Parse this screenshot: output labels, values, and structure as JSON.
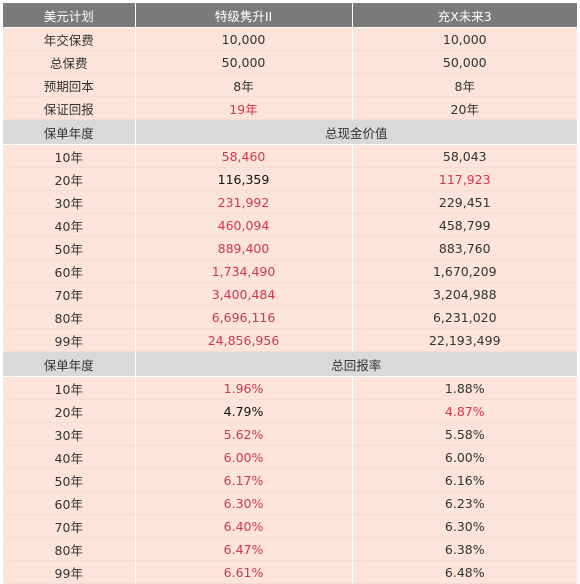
{
  "header": {
    "col1": "美元计划",
    "col2": "特级隽升II",
    "col3": "充X未来3"
  },
  "basic_rows": [
    {
      "label": "年交保费",
      "a": "10,000",
      "b": "10,000",
      "a_color": "normal",
      "b_color": "normal"
    },
    {
      "label": "总保费",
      "a": "50,000",
      "b": "50,000",
      "a_color": "normal",
      "b_color": "normal"
    },
    {
      "label": "预期回本",
      "a": "8年",
      "b": "8年",
      "a_color": "normal",
      "b_color": "normal"
    },
    {
      "label": "保证回报",
      "a": "19年",
      "b": "20年",
      "a_color": "red",
      "b_color": "normal"
    }
  ],
  "cash_section": {
    "col1": "保单年度",
    "title": "总现金价值",
    "rows": [
      {
        "label": "10年",
        "a": "58,460",
        "b": "58,043",
        "a_color": "red",
        "b_color": "normal"
      },
      {
        "label": "20年",
        "a": "116,359",
        "b": "117,923",
        "a_color": "black",
        "b_color": "red"
      },
      {
        "label": "30年",
        "a": "231,992",
        "b": "229,451",
        "a_color": "red",
        "b_color": "normal"
      },
      {
        "label": "40年",
        "a": "460,094",
        "b": "458,799",
        "a_color": "red",
        "b_color": "normal"
      },
      {
        "label": "50年",
        "a": "889,400",
        "b": "883,760",
        "a_color": "red",
        "b_color": "normal"
      },
      {
        "label": "60年",
        "a": "1,734,490",
        "b": "1,670,209",
        "a_color": "red",
        "b_color": "normal"
      },
      {
        "label": "70年",
        "a": "3,400,484",
        "b": "3,204,988",
        "a_color": "red",
        "b_color": "normal"
      },
      {
        "label": "80年",
        "a": "6,696,116",
        "b": "6,231,020",
        "a_color": "red",
        "b_color": "normal"
      },
      {
        "label": "99年",
        "a": "24,856,956",
        "b": "22,193,499",
        "a_color": "red",
        "b_color": "normal"
      }
    ]
  },
  "return_section": {
    "col1": "保单年度",
    "title": "总回报率",
    "rows": [
      {
        "label": "10年",
        "a": "1.96%",
        "b": "1.88%",
        "a_color": "red",
        "b_color": "normal"
      },
      {
        "label": "20年",
        "a": "4.79%",
        "b": "4.87%",
        "a_color": "black",
        "b_color": "red"
      },
      {
        "label": "30年",
        "a": "5.62%",
        "b": "5.58%",
        "a_color": "red",
        "b_color": "normal"
      },
      {
        "label": "40年",
        "a": "6.00%",
        "b": "6.00%",
        "a_color": "red",
        "b_color": "normal"
      },
      {
        "label": "50年",
        "a": "6.17%",
        "b": "6.16%",
        "a_color": "red",
        "b_color": "normal"
      },
      {
        "label": "60年",
        "a": "6.30%",
        "b": "6.23%",
        "a_color": "red",
        "b_color": "normal"
      },
      {
        "label": "70年",
        "a": "6.40%",
        "b": "6.30%",
        "a_color": "red",
        "b_color": "normal"
      },
      {
        "label": "80年",
        "a": "6.47%",
        "b": "6.38%",
        "a_color": "red",
        "b_color": "normal"
      },
      {
        "label": "99年",
        "a": "6.61%",
        "b": "6.48%",
        "a_color": "red",
        "b_color": "normal"
      }
    ]
  },
  "colors": {
    "header_bg": "#7a7a7a",
    "section_bg": "#d9d9d9",
    "row_bg": "#fce4da",
    "highlight_red": "#d2374a"
  }
}
